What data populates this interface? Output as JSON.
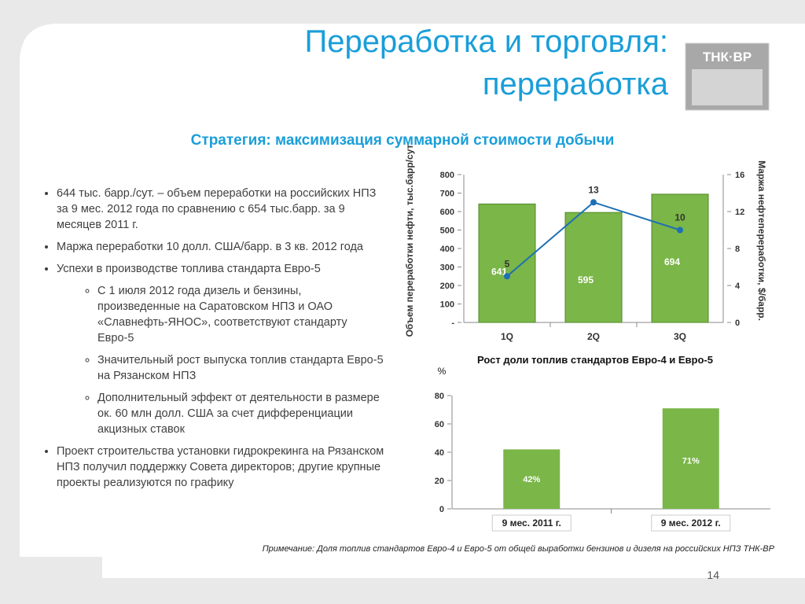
{
  "header": {
    "title_line1": "Переработка и торговля:",
    "title_line2": "переработка",
    "subtitle": "Стратегия: максимизация суммарной стоимости  добычи",
    "logo": "ТНК·BP"
  },
  "bullets": [
    {
      "text": "644 тыс. барр./сут. – объем переработки на российских НПЗ за 9 мес. 2012 года по сравнению с 654 тыс.барр. за 9 месяцев 2011 г."
    },
    {
      "text": "Маржа переработки 10 долл. США/барр. в 3 кв. 2012 года"
    },
    {
      "text": "Успехи в производстве топлива стандарта Евро-5",
      "sub": [
        "С 1 июля 2012 года дизель и бензины, произведенные на Саратовском НПЗ и ОАО «Славнефть-ЯНОС», соответствуют стандарту Евро-5",
        "Значительный рост выпуска топлив стандарта Евро-5 на Рязанском НПЗ",
        "Дополнительный эффект от деятельности в размере ок. 60 млн долл. США за счет дифференциации акцизных ставок"
      ]
    },
    {
      "text": "Проект строительства установки гидрокрекинга на Рязанском НПЗ получил поддержку Совета директоров; другие крупные проекты реализуются по графику"
    }
  ],
  "chart_data": [
    {
      "type": "combo",
      "categories": [
        "1Q",
        "2Q",
        "3Q"
      ],
      "ylabel": "Объем переработки нефти, тыс.барр/сут",
      "y2label": "Маржа нефтепереработки, $/барр.",
      "series": [
        {
          "type": "bar",
          "color": "#7ab648",
          "values": [
            641,
            595,
            694
          ]
        },
        {
          "type": "line",
          "axis": "y2",
          "color": "#1f6fb5",
          "values": [
            5,
            13,
            10
          ]
        }
      ],
      "ylim": [
        0,
        800
      ],
      "yticks": [
        {
          "value": 0,
          "label": "-"
        },
        100,
        200,
        300,
        400,
        500,
        600,
        700,
        800
      ],
      "y2lim": [
        0,
        16
      ],
      "y2ticks": [
        0,
        4,
        8,
        12,
        16
      ]
    },
    {
      "type": "bar",
      "title": "Рост доли топлив стандартов  Евро-4 и Евро-5",
      "ylabel": "%",
      "categories": [
        "9 мес. 2011 г.",
        "9 мес. 2012 г."
      ],
      "values": [
        42,
        71
      ],
      "value_labels": [
        "42%",
        "71%"
      ],
      "color": "#7ab648",
      "ylim": [
        0,
        80
      ],
      "yticks": [
        0,
        20,
        40,
        60,
        80
      ]
    }
  ],
  "note": "Примечание: Доля топлив стандартов Евро-4 и Евро-5  от  общей выработки бензинов и дизеля  на российских НПЗ ТНК-ВР",
  "page_number": "14"
}
